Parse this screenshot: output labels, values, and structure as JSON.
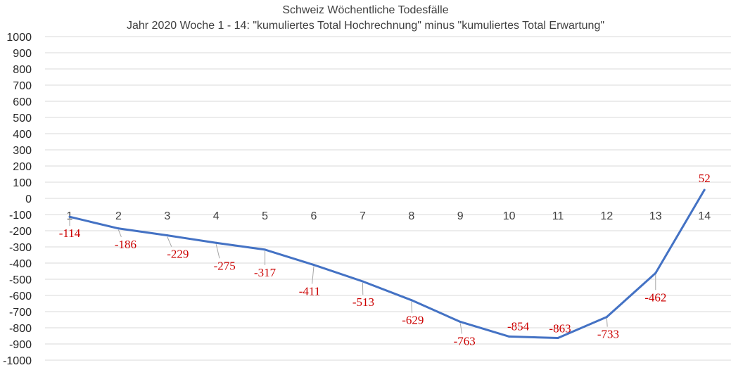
{
  "chart_data": {
    "type": "line",
    "title": "Schweiz Wöchentliche Todesfälle",
    "subtitle": "Jahr 2020 Woche 1 - 14: \"kumuliertes Total Hochrechnung\" minus \"kumuliertes Total Erwartung\"",
    "xlabel": "",
    "ylabel": "",
    "categories": [
      "1",
      "2",
      "3",
      "4",
      "5",
      "6",
      "7",
      "8",
      "9",
      "10",
      "11",
      "12",
      "13",
      "14"
    ],
    "series": [
      {
        "values": [
          -114,
          -186,
          -229,
          -275,
          -317,
          -411,
          -513,
          -629,
          -763,
          -854,
          -863,
          -733,
          -462,
          52
        ]
      }
    ],
    "data_labels": [
      "-114",
      "-186",
      "-229",
      "-275",
      "-317",
      "-411",
      "-513",
      "-629",
      "-763",
      "-854",
      "-863",
      "-733",
      "-462",
      "52"
    ],
    "ylim": [
      -1000,
      1000
    ],
    "ytick_step": 100,
    "yticks": [
      "1000",
      "900",
      "800",
      "700",
      "600",
      "500",
      "400",
      "300",
      "200",
      "100",
      "0",
      "-100",
      "-200",
      "-300",
      "-400",
      "-500",
      "-600",
      "-700",
      "-800",
      "-900",
      "-1000"
    ],
    "grid": true,
    "legend": "none",
    "colors": {
      "line": "#4472c4",
      "data_label": "#cc0000",
      "grid": "#d9d9d9",
      "axis_text": "#262626"
    }
  }
}
